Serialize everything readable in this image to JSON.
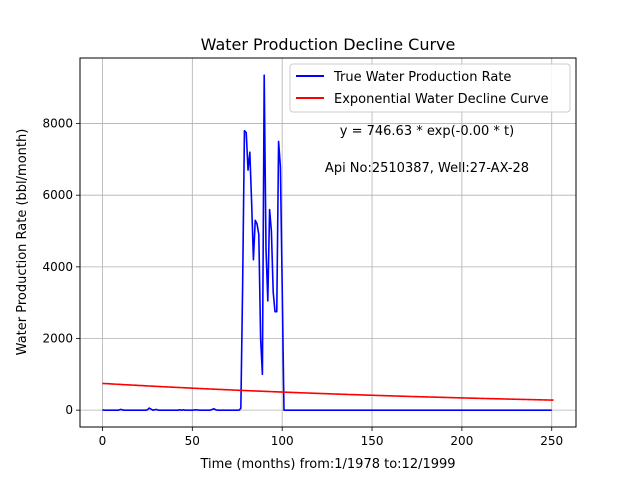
{
  "chart_data": {
    "type": "line",
    "title": "Water Production Decline Curve",
    "xlabel": "Time (months) from:1/1978 to:12/1999",
    "ylabel": "Water Production Rate (bbl/month)",
    "xlim": [
      -12.5,
      263.5
    ],
    "ylim": [
      -470,
      9830
    ],
    "xticks": [
      0,
      50,
      100,
      150,
      200,
      250
    ],
    "yticks": [
      0,
      2000,
      4000,
      6000,
      8000
    ],
    "grid": true,
    "legend_position": "top-right",
    "annotations": [
      {
        "text": "y = 746.63 * exp(-0.00 * t)"
      },
      {
        "text": "Api No:2510387, Well:27-AX-28"
      }
    ],
    "series": [
      {
        "name": "True Water Production Rate",
        "color": "#0000ff",
        "x": [
          0,
          1,
          2,
          3,
          5,
          7,
          9,
          10,
          11,
          12,
          14,
          16,
          18,
          20,
          22,
          24,
          25,
          26,
          27,
          28,
          29,
          30,
          31,
          32,
          34,
          36,
          38,
          40,
          42,
          43,
          44,
          45,
          46,
          48,
          50,
          52,
          54,
          56,
          58,
          60,
          61,
          62,
          63,
          64,
          66,
          68,
          70,
          72,
          74,
          75,
          76,
          77,
          78,
          79,
          80,
          81,
          82,
          83,
          84,
          85,
          86,
          87,
          88,
          89,
          90,
          91,
          92,
          93,
          94,
          95,
          96,
          97,
          98,
          99,
          100,
          101,
          102,
          104,
          110,
          120,
          130,
          140,
          150,
          160,
          170,
          180,
          190,
          200,
          210,
          220,
          230,
          240,
          250
        ],
        "y": [
          10,
          0,
          0,
          0,
          0,
          0,
          0,
          20,
          10,
          0,
          0,
          0,
          0,
          0,
          0,
          0,
          10,
          60,
          30,
          0,
          10,
          20,
          0,
          0,
          0,
          0,
          0,
          0,
          0,
          10,
          0,
          10,
          0,
          0,
          0,
          10,
          0,
          0,
          0,
          0,
          20,
          40,
          10,
          0,
          0,
          0,
          0,
          0,
          0,
          0,
          0,
          50,
          3500,
          7800,
          7750,
          6700,
          7200,
          5800,
          4200,
          5300,
          5200,
          4900,
          2000,
          1000,
          9350,
          4500,
          3050,
          5600,
          5000,
          3300,
          2750,
          2750,
          7500,
          6800,
          3500,
          0,
          0,
          0,
          0,
          0,
          0,
          0,
          0,
          0,
          0,
          0,
          0,
          0,
          0,
          0,
          0,
          0,
          0
        ]
      },
      {
        "name": "Exponential Water Decline Curve",
        "color": "#ff0000",
        "a": 746.63,
        "b": 0.0039,
        "x_range": [
          0,
          251
        ]
      }
    ]
  }
}
